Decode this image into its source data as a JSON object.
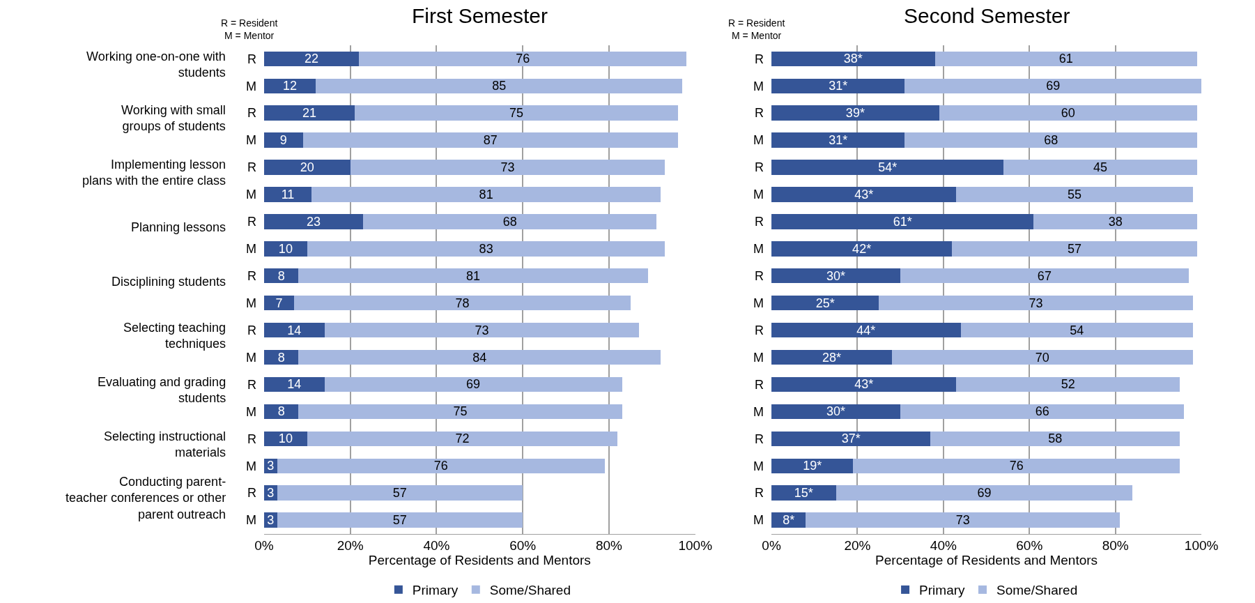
{
  "chart_data": [
    {
      "type": "bar",
      "orientation": "horizontal",
      "stacked": true,
      "title": "First Semester",
      "xlabel": "Percentage of Residents and Mentors",
      "categories": [
        "R",
        "M",
        "R",
        "M",
        "R",
        "M",
        "R",
        "M",
        "R",
        "M",
        "R",
        "M",
        "R",
        "M",
        "R",
        "M",
        "R",
        "M"
      ],
      "series": [
        {
          "name": "Primary",
          "color": "#355597",
          "values": [
            22,
            12,
            21,
            9,
            20,
            11,
            23,
            10,
            8,
            7,
            14,
            8,
            14,
            8,
            10,
            3,
            3,
            3
          ]
        },
        {
          "name": "Some/Shared",
          "color": "#a6b8e0",
          "values": [
            76,
            85,
            75,
            87,
            73,
            81,
            68,
            83,
            81,
            78,
            73,
            84,
            69,
            75,
            72,
            76,
            57,
            57
          ]
        }
      ],
      "data_labels": true,
      "xlim": [
        0,
        100
      ],
      "xticks": [
        {
          "value": 0,
          "label": "0%"
        },
        {
          "value": 20,
          "label": "20%"
        },
        {
          "value": 40,
          "label": "40%"
        },
        {
          "value": 60,
          "label": "60%"
        },
        {
          "value": 80,
          "label": "80%"
        },
        {
          "value": 100,
          "label": "100%"
        }
      ],
      "grid": "x",
      "legend": "bottom",
      "annotations": [
        "R = Resident\nM = Mentor",
        "Working one-on-one with\nstudents",
        "Working with small\ngroups of students",
        "Implementing lesson\nplans with the entire class",
        "Planning lessons",
        "Disciplining students",
        "Selecting teaching\ntechniques",
        "Evaluating and grading\nstudents",
        "Selecting instructional\nmaterials",
        "Conducting parent-\nteacher conferences or other\nparent outreach"
      ]
    },
    {
      "type": "bar",
      "orientation": "horizontal",
      "stacked": true,
      "title": "Second Semester",
      "xlabel": "Percentage of Residents and Mentors",
      "categories": [
        "R",
        "M",
        "R",
        "M",
        "R",
        "M",
        "R",
        "M",
        "R",
        "M",
        "R",
        "M",
        "R",
        "M",
        "R",
        "M",
        "R",
        "M"
      ],
      "series": [
        {
          "name": "Primary",
          "color": "#355597",
          "values": [
            38,
            31,
            39,
            31,
            54,
            43,
            61,
            42,
            30,
            25,
            44,
            28,
            43,
            30,
            37,
            19,
            15,
            8
          ],
          "value_labels": [
            "38*",
            "31*",
            "39*",
            "31*",
            "54*",
            "43*",
            "61*",
            "42*",
            "30*",
            "25*",
            "44*",
            "28*",
            "43*",
            "30*",
            "37*",
            "19*",
            "15*",
            "8*"
          ]
        },
        {
          "name": "Some/Shared",
          "color": "#a6b8e0",
          "values": [
            61,
            69,
            60,
            68,
            45,
            55,
            38,
            57,
            67,
            73,
            54,
            70,
            52,
            66,
            58,
            76,
            69,
            73
          ],
          "value_labels": [
            "61",
            "69",
            "60",
            "68",
            "45",
            "55",
            "38",
            "57",
            "67",
            "73",
            "54",
            "70",
            "52",
            "66",
            "58",
            "76",
            "69",
            "73"
          ]
        }
      ],
      "xlim": [
        0,
        100
      ],
      "xticks": [
        {
          "value": 0,
          "label": "0%"
        },
        {
          "value": 20,
          "label": "20%"
        },
        {
          "value": 40,
          "label": "40%"
        },
        {
          "value": 60,
          "label": "60%"
        },
        {
          "value": 80,
          "label": "80%"
        },
        {
          "value": 100,
          "label": "100%"
        }
      ],
      "grid": "x",
      "legend": "bottom",
      "annotations": [
        "R = Resident\nM = Mentor"
      ]
    }
  ]
}
